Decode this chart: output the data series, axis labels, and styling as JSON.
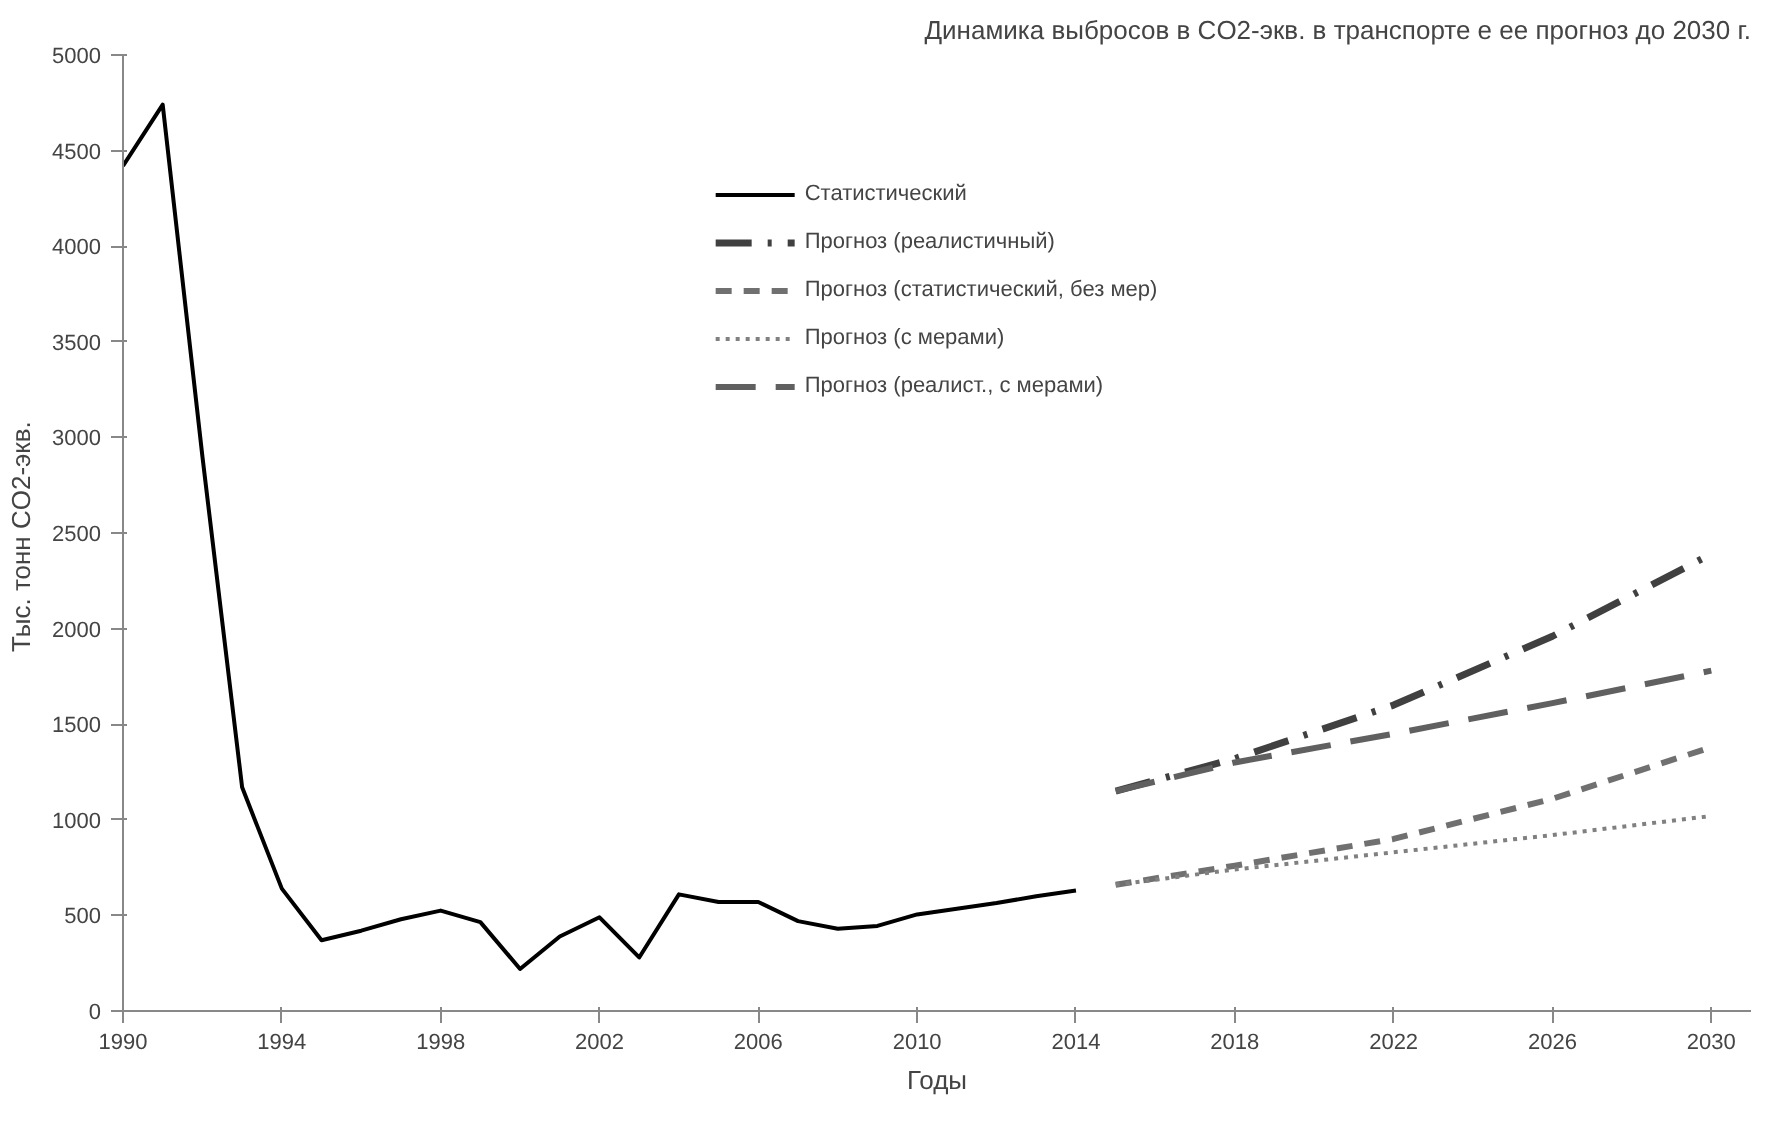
{
  "chart_data": {
    "type": "line",
    "title": "Динамика выбросов в CO2-экв. в транспорте е ее прогноз до 2030 г.",
    "xlabel": "Годы",
    "ylabel": "Тыс. тонн  CO2-экв.",
    "xlim": [
      1990,
      2031
    ],
    "ylim": [
      0,
      5000
    ],
    "xticks": [
      1990,
      1994,
      1998,
      2002,
      2006,
      2010,
      2014,
      2018,
      2022,
      2026,
      2030
    ],
    "yticks": [
      0,
      500,
      1000,
      1500,
      2000,
      2500,
      3000,
      3500,
      4000,
      4500,
      5000
    ],
    "grid": false,
    "legend": "top",
    "series": [
      {
        "name": "Статистический",
        "color": "#000000",
        "line_style": "solid",
        "x": [
          1990,
          1991,
          1992,
          1993,
          1994,
          1995,
          1996,
          1997,
          1998,
          1999,
          2000,
          2001,
          2002,
          2003,
          2004,
          2005,
          2006,
          2007,
          2008,
          2009,
          2010,
          2011,
          2012,
          2013,
          2014
        ],
        "values": [
          4420,
          4740,
          2900,
          1170,
          640,
          370,
          420,
          480,
          525,
          465,
          220,
          390,
          490,
          280,
          610,
          570,
          570,
          470,
          430,
          445,
          505,
          535,
          565,
          600,
          630
        ]
      },
      {
        "name": "Прогноз (реалистичный)",
        "color": "#404040",
        "line_style": "dashdot",
        "x": [
          2015,
          2018,
          2022,
          2026,
          2030
        ],
        "values": [
          1150,
          1320,
          1600,
          1960,
          2390
        ]
      },
      {
        "name": "Прогноз (статистический, без мер)",
        "color": "#707070",
        "line_style": "dashed",
        "x": [
          2015,
          2018,
          2022,
          2026,
          2030
        ],
        "values": [
          660,
          760,
          900,
          1110,
          1380
        ]
      },
      {
        "name": "Прогноз (с мерами)",
        "color": "#808080",
        "line_style": "dotted",
        "x": [
          2015,
          2018,
          2022,
          2026,
          2030
        ],
        "values": [
          660,
          740,
          830,
          920,
          1020
        ]
      },
      {
        "name": "Прогноз (реалист., с мерами)",
        "color": "#606060",
        "line_style": "longdash",
        "x": [
          2015,
          2018,
          2022,
          2026,
          2030
        ],
        "values": [
          1150,
          1300,
          1450,
          1610,
          1780
        ]
      }
    ]
  }
}
